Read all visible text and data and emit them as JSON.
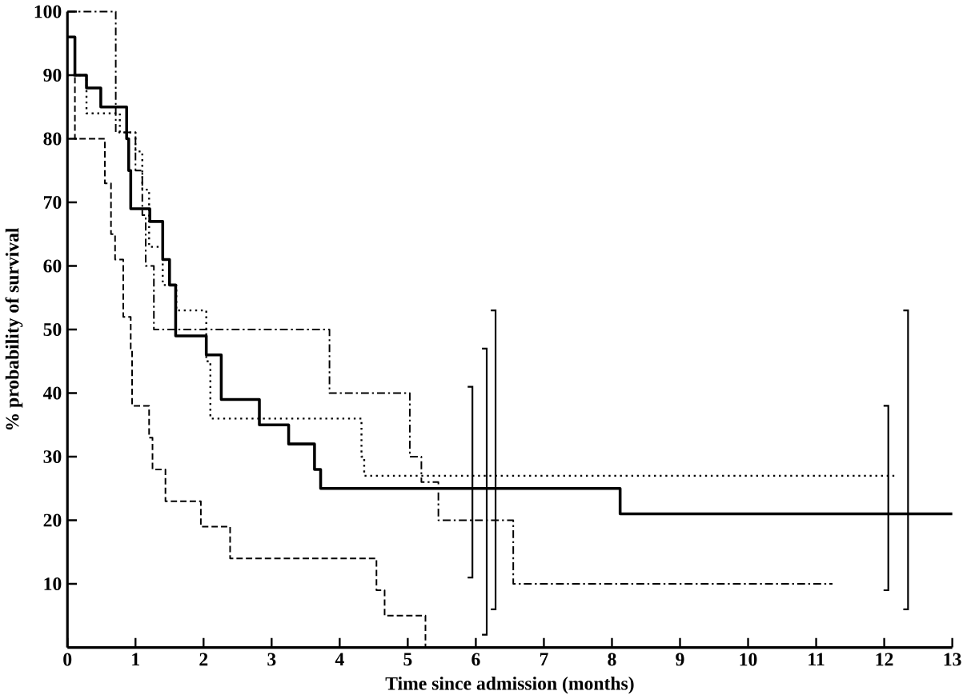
{
  "chart_data": {
    "type": "step",
    "xlabel": "Time since admission (months)",
    "ylabel": "% probability of survival",
    "xlim": [
      0,
      13
    ],
    "xticks": [
      0,
      1,
      2,
      3,
      4,
      5,
      6,
      7,
      8,
      9,
      10,
      11,
      12,
      13
    ],
    "ylim": [
      0,
      100
    ],
    "yticks": [
      10,
      20,
      30,
      40,
      50,
      60,
      70,
      80,
      90,
      100
    ],
    "grid": false,
    "series": [
      {
        "color": "#000000",
        "line_style": "solid",
        "x": [
          0,
          0.11,
          0.28,
          0.49,
          0.87,
          0.9,
          0.93,
          1.21,
          1.4,
          1.5,
          1.59,
          2.04,
          2.26,
          2.82,
          3.25,
          3.63,
          3.72,
          6.16,
          8.12,
          12.35,
          13
        ],
        "values": [
          96,
          90,
          88,
          85,
          80,
          75,
          69,
          67,
          61,
          57,
          49,
          46,
          39,
          35,
          32,
          28,
          25,
          25,
          21,
          21,
          21
        ],
        "errors": [
          null,
          null,
          null,
          null,
          null,
          null,
          null,
          null,
          null,
          null,
          null,
          null,
          null,
          null,
          null,
          null,
          null,
          [
            2,
            47
          ],
          null,
          [
            6,
            53
          ],
          null
        ]
      },
      {
        "color": "#000000",
        "line_style": "dashed",
        "x": [
          0,
          0.11,
          0.55,
          0.64,
          0.7,
          0.82,
          0.93,
          0.95,
          1.2,
          1.25,
          1.44,
          1.96,
          2.39,
          4.54,
          4.66,
          5.26
        ],
        "values": [
          90,
          80,
          73,
          65,
          61,
          52,
          47,
          38,
          33,
          28,
          23,
          19,
          14,
          9,
          5,
          0
        ]
      },
      {
        "color": "#000000",
        "line_style": "dotted",
        "x": [
          0,
          0.28,
          0.77,
          1.0,
          1.1,
          1.2,
          1.4,
          1.6,
          2.04,
          2.1,
          4.32,
          4.36,
          6.29,
          12.06,
          12.2
        ],
        "values": [
          90,
          84,
          81,
          78,
          72,
          63,
          57,
          53,
          45,
          36,
          30,
          27,
          27,
          27,
          27
        ],
        "errors": [
          null,
          null,
          null,
          null,
          null,
          null,
          null,
          null,
          null,
          null,
          null,
          null,
          [
            6,
            53
          ],
          [
            9,
            38
          ],
          null
        ]
      },
      {
        "color": "#000000",
        "line_style": "dashdot",
        "x": [
          0,
          0.71,
          1.0,
          1.1,
          1.15,
          1.27,
          3.85,
          5.03,
          5.2,
          5.45,
          5.95,
          6.55,
          11.24
        ],
        "values": [
          100,
          81,
          75,
          68,
          60,
          50,
          40,
          30,
          26,
          20,
          20,
          10,
          10
        ],
        "errors": [
          null,
          null,
          null,
          null,
          null,
          null,
          null,
          null,
          null,
          null,
          [
            11,
            41
          ],
          null,
          null
        ]
      }
    ]
  }
}
